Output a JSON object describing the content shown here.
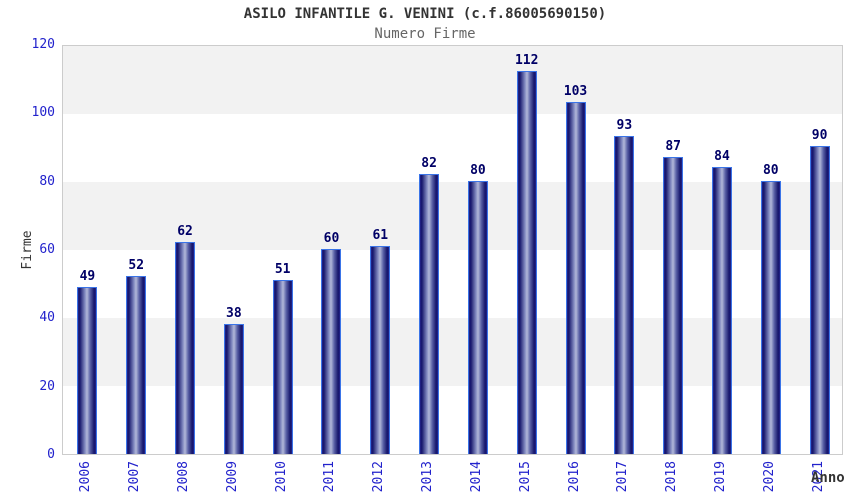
{
  "header": {
    "title": "ASILO INFANTILE G. VENINI (c.f.86005690150)",
    "subtitle": "Numero Firme"
  },
  "chart_data": {
    "type": "bar",
    "title": "ASILO INFANTILE G. VENINI (c.f.86005690150)",
    "subtitle": "Numero Firme",
    "xlabel": "Anno",
    "ylabel": "Firme",
    "categories": [
      "2006",
      "2007",
      "2008",
      "2009",
      "2010",
      "2011",
      "2012",
      "2013",
      "2014",
      "2015",
      "2016",
      "2017",
      "2018",
      "2019",
      "2020",
      "2021"
    ],
    "values": [
      49,
      52,
      62,
      38,
      51,
      60,
      61,
      82,
      80,
      112,
      103,
      93,
      87,
      84,
      80,
      90
    ],
    "ylim": [
      0,
      120
    ],
    "yticks": [
      0,
      20,
      40,
      60,
      80,
      100,
      120
    ],
    "grid": "alternating-horizontal-bands",
    "legend": "none",
    "colors": {
      "bar_border": "#3a74e8",
      "bar_dark": "#16166b",
      "bar_light": "#b2b8d9",
      "tick_label": "#2222cc",
      "value_label": "#000066",
      "band_gray": "#f2f2f2",
      "band_white": "#ffffff",
      "plot_border": "#cccccc",
      "title_color": "#333333",
      "subtitle_color": "#666666"
    }
  }
}
